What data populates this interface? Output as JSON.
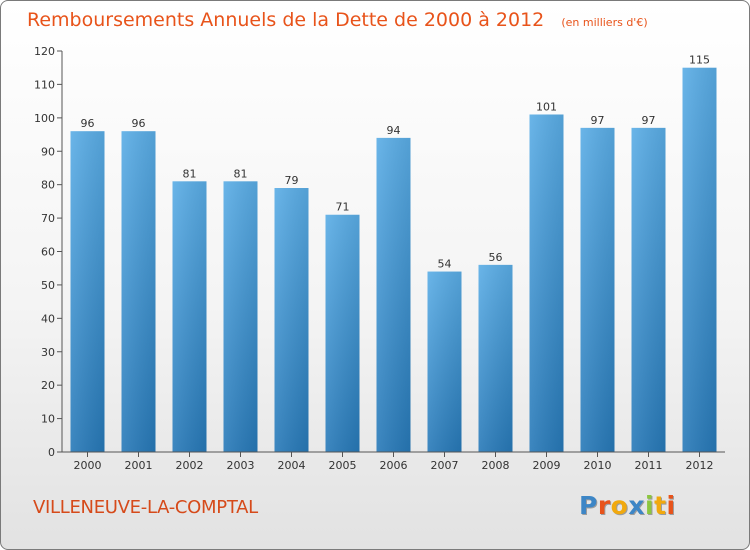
{
  "header": {
    "title": "Remboursements Annuels de la Dette de 2000 à 2012",
    "subtitle": "(en milliers d'€)"
  },
  "location": {
    "name": "VILLENEUVE-LA-COMPTAL"
  },
  "logo": {
    "text": "Proxiti",
    "letters": [
      {
        "ch": "P",
        "color": "#3d86c6"
      },
      {
        "ch": "r",
        "color": "#e8531a"
      },
      {
        "ch": "o",
        "color": "#f1a90e"
      },
      {
        "ch": "x",
        "color": "#3d86c6"
      },
      {
        "ch": "i",
        "color": "#8cc63f"
      },
      {
        "ch": "t",
        "color": "#f1a90e"
      },
      {
        "ch": "i",
        "color": "#e8531a"
      }
    ]
  },
  "chart_data": {
    "type": "bar",
    "title": "Remboursements Annuels de la Dette de 2000 à 2012",
    "subtitle": "(en milliers d'€)",
    "categories": [
      "2000",
      "2001",
      "2002",
      "2003",
      "2004",
      "2005",
      "2006",
      "2007",
      "2008",
      "2009",
      "2010",
      "2011",
      "2012"
    ],
    "values": [
      96,
      96,
      81,
      81,
      79,
      71,
      94,
      54,
      56,
      101,
      97,
      97,
      115
    ],
    "ylim": [
      0,
      120
    ],
    "yticks": [
      0,
      10,
      20,
      30,
      40,
      50,
      60,
      70,
      80,
      90,
      100,
      110,
      120
    ],
    "xlabel": "",
    "ylabel": "",
    "grid": false,
    "bar_color_top": "#5aade6",
    "bar_color_bottom": "#2779b8"
  }
}
